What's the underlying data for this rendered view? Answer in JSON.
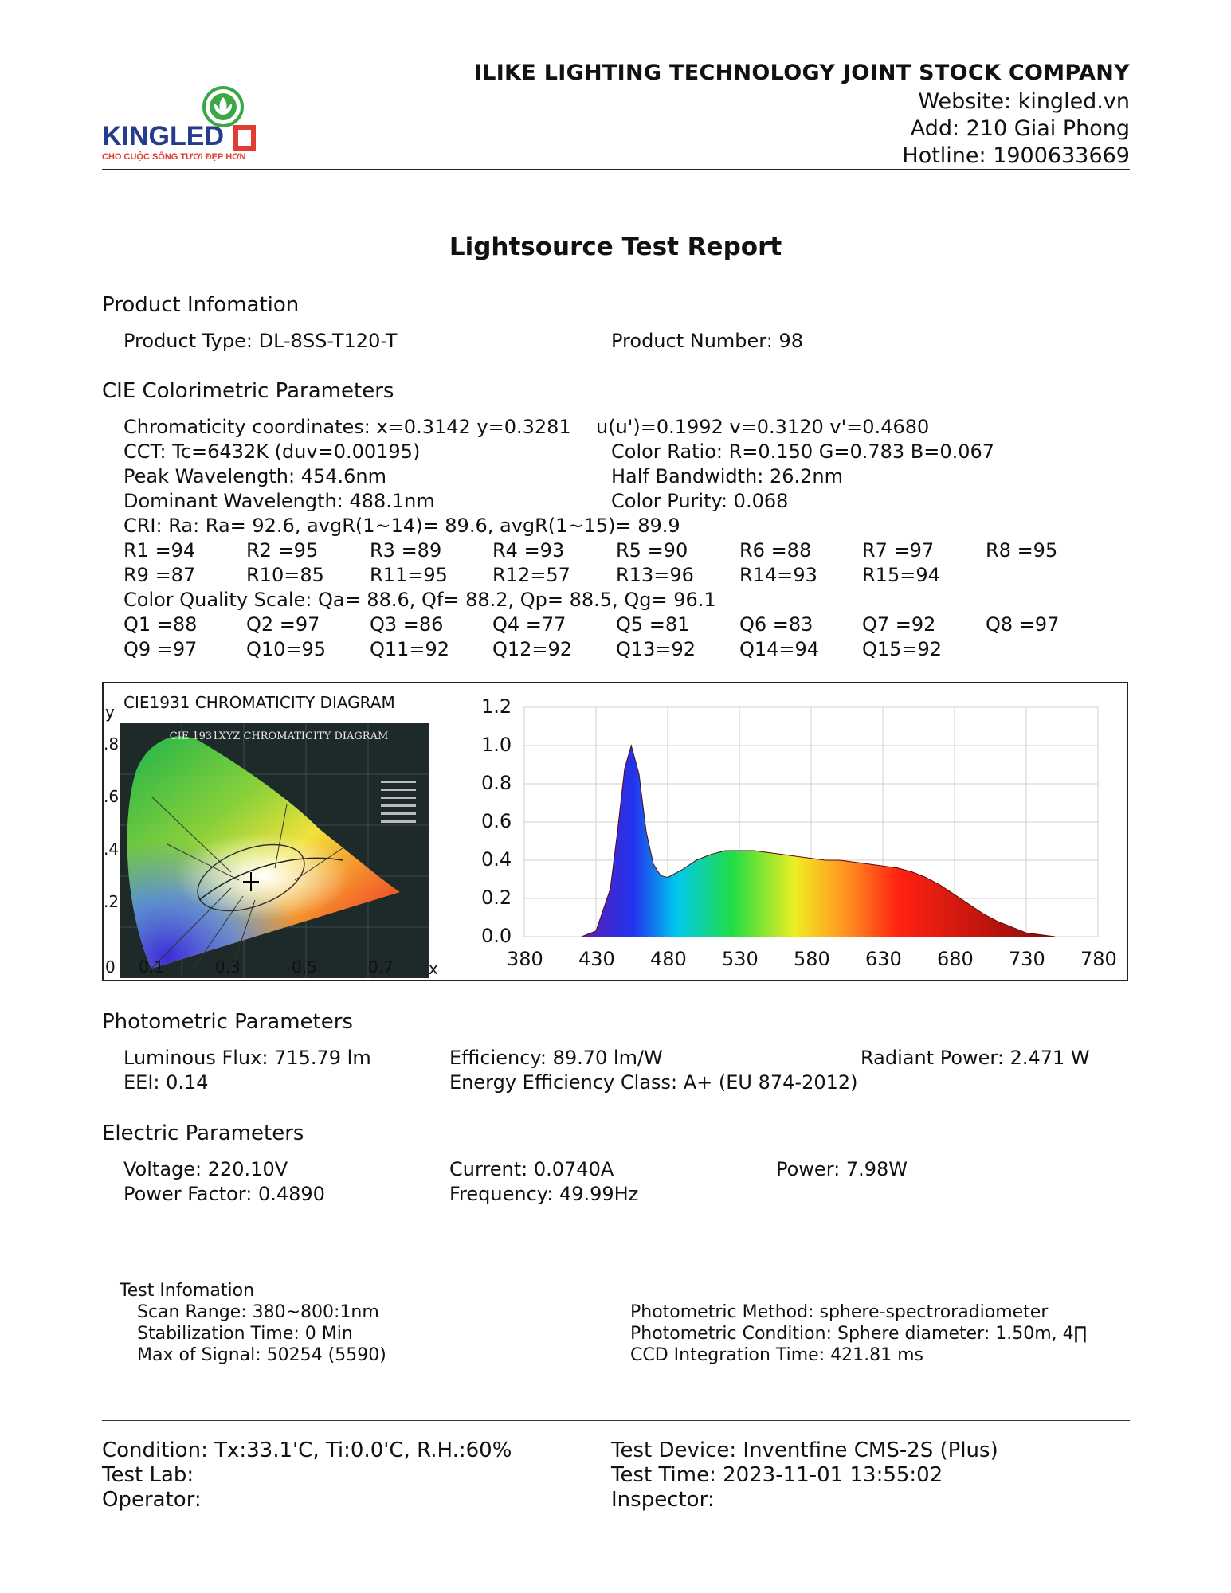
{
  "header": {
    "logo_text": "KINGLED",
    "logo_tagline": "CHO CUỘC SỐNG TƯƠI ĐẸP HƠN",
    "company": "ILIKE LIGHTING TECHNOLOGY JOINT STOCK COMPANY",
    "website": "Website: kingled.vn",
    "address": "Add: 210 Giai Phong",
    "hotline": "Hotline: 1900633669"
  },
  "title": "Lightsource Test Report",
  "product": {
    "heading": "Product Infomation",
    "type": "Product Type: DL-8SS-T120-T",
    "number": "Product Number: 98"
  },
  "cie": {
    "heading": "CIE Colorimetric Parameters",
    "chromaticity": "Chromaticity coordinates: x=0.3142 y=0.3281",
    "uv": "u(u')=0.1992 v=0.3120 v'=0.4680",
    "cct": "CCT: Tc=6432K (duv=0.00195)",
    "color_ratio": "Color Ratio: R=0.150  G=0.783  B=0.067",
    "peak": "Peak Wavelength: 454.6nm",
    "half_bw": "Half Bandwidth: 26.2nm",
    "dominant": "Dominant Wavelength: 488.1nm",
    "purity": "Color Purity: 0.068",
    "cri": "CRI: Ra: Ra= 92.6, avgR(1~14)= 89.6, avgR(1~15)= 89.9",
    "r_row1": [
      "R1 =94",
      "R2 =95",
      "R3 =89",
      "R4 =93",
      "R5 =90",
      "R6 =88",
      "R7 =97",
      "R8 =95"
    ],
    "r_row2": [
      "R9 =87",
      "R10=85",
      "R11=95",
      "R12=57",
      "R13=96",
      "R14=93",
      "R15=94"
    ],
    "cqs": "Color Quality Scale: Qa= 88.6, Qf= 88.2, Qp= 88.5, Qg= 96.1",
    "q_row1": [
      "Q1 =88",
      "Q2 =97",
      "Q3 =86",
      "Q4 =77",
      "Q5 =81",
      "Q6 =83",
      "Q7 =92",
      "Q8 =97"
    ],
    "q_row2": [
      "Q9 =97",
      "Q10=95",
      "Q11=92",
      "Q12=92",
      "Q13=92",
      "Q14=94",
      "Q15=92"
    ]
  },
  "cie_diagram": {
    "title": "CIE1931 CHROMATICITY DIAGRAM",
    "inner_title": "CIE 1931XYZ CHROMATICITY DIAGRAM",
    "y_label": "y",
    "x_label": "x",
    "y_ticks": [
      ".8",
      ".6",
      ".4",
      ".2"
    ],
    "x_ticks": [
      "0",
      "0.1",
      "0.3",
      "0.5",
      "0.7"
    ],
    "point": {
      "x": 0.3142,
      "y": 0.3281
    }
  },
  "chart_data": {
    "type": "area",
    "title": "",
    "xlabel": "",
    "ylabel": "",
    "xlim": [
      380,
      780
    ],
    "ylim": [
      0,
      1.2
    ],
    "x_ticks": [
      "380",
      "430",
      "480",
      "530",
      "580",
      "630",
      "680",
      "730",
      "780"
    ],
    "y_ticks": [
      "1.2",
      "1.0",
      "0.8",
      "0.6",
      "0.4",
      "0.2",
      "0.0"
    ],
    "grid": true,
    "x": [
      420,
      430,
      440,
      445,
      450,
      454.6,
      460,
      465,
      470,
      475,
      480,
      490,
      500,
      510,
      520,
      530,
      540,
      550,
      560,
      570,
      580,
      590,
      600,
      610,
      620,
      630,
      640,
      650,
      660,
      670,
      680,
      690,
      700,
      710,
      720,
      730,
      740,
      750
    ],
    "values": [
      0.0,
      0.03,
      0.25,
      0.55,
      0.88,
      1.0,
      0.85,
      0.55,
      0.38,
      0.32,
      0.31,
      0.35,
      0.4,
      0.43,
      0.45,
      0.45,
      0.45,
      0.44,
      0.43,
      0.42,
      0.41,
      0.4,
      0.4,
      0.39,
      0.38,
      0.37,
      0.36,
      0.34,
      0.31,
      0.27,
      0.22,
      0.17,
      0.12,
      0.08,
      0.05,
      0.02,
      0.01,
      0.0
    ]
  },
  "photometric": {
    "heading": "Photometric Parameters",
    "flux": "Luminous Flux: 715.79 lm",
    "efficiency": "Efficiency: 89.70 lm/W",
    "radiant": "Radiant Power: 2.471 W",
    "eei": "EEI:  0.14",
    "energy_class": "Energy Efficiency Class: A+ (EU 874-2012)"
  },
  "electric": {
    "heading": "Electric Parameters",
    "voltage": "Voltage: 220.10V",
    "current": "Current: 0.0740A",
    "power": "Power: 7.98W",
    "pf": "Power Factor: 0.4890",
    "frequency": "Frequency: 49.99Hz"
  },
  "test": {
    "heading": "Test Infomation",
    "scan": "Scan Range: 380~800:1nm",
    "stab": "Stabilization Time: 0 Min",
    "max_signal": "Max of Signal: 50254 (5590)",
    "method": "Photometric Method: sphere-spectroradiometer",
    "condition": "Photometric Condition: Sphere diameter: 1.50m, 4∏",
    "ccd": "CCD Integration Time: 421.81 ms"
  },
  "footer": {
    "condition": "Condition: Tx:33.1'C, Ti:0.0'C, R.H.:60%",
    "device": "Test Device: Inventfine CMS-2S (Plus)",
    "lab": "Test Lab:",
    "time": "Test Time: 2023-11-01 13:55:02",
    "operator": "Operator:",
    "inspector": "Inspector:"
  }
}
